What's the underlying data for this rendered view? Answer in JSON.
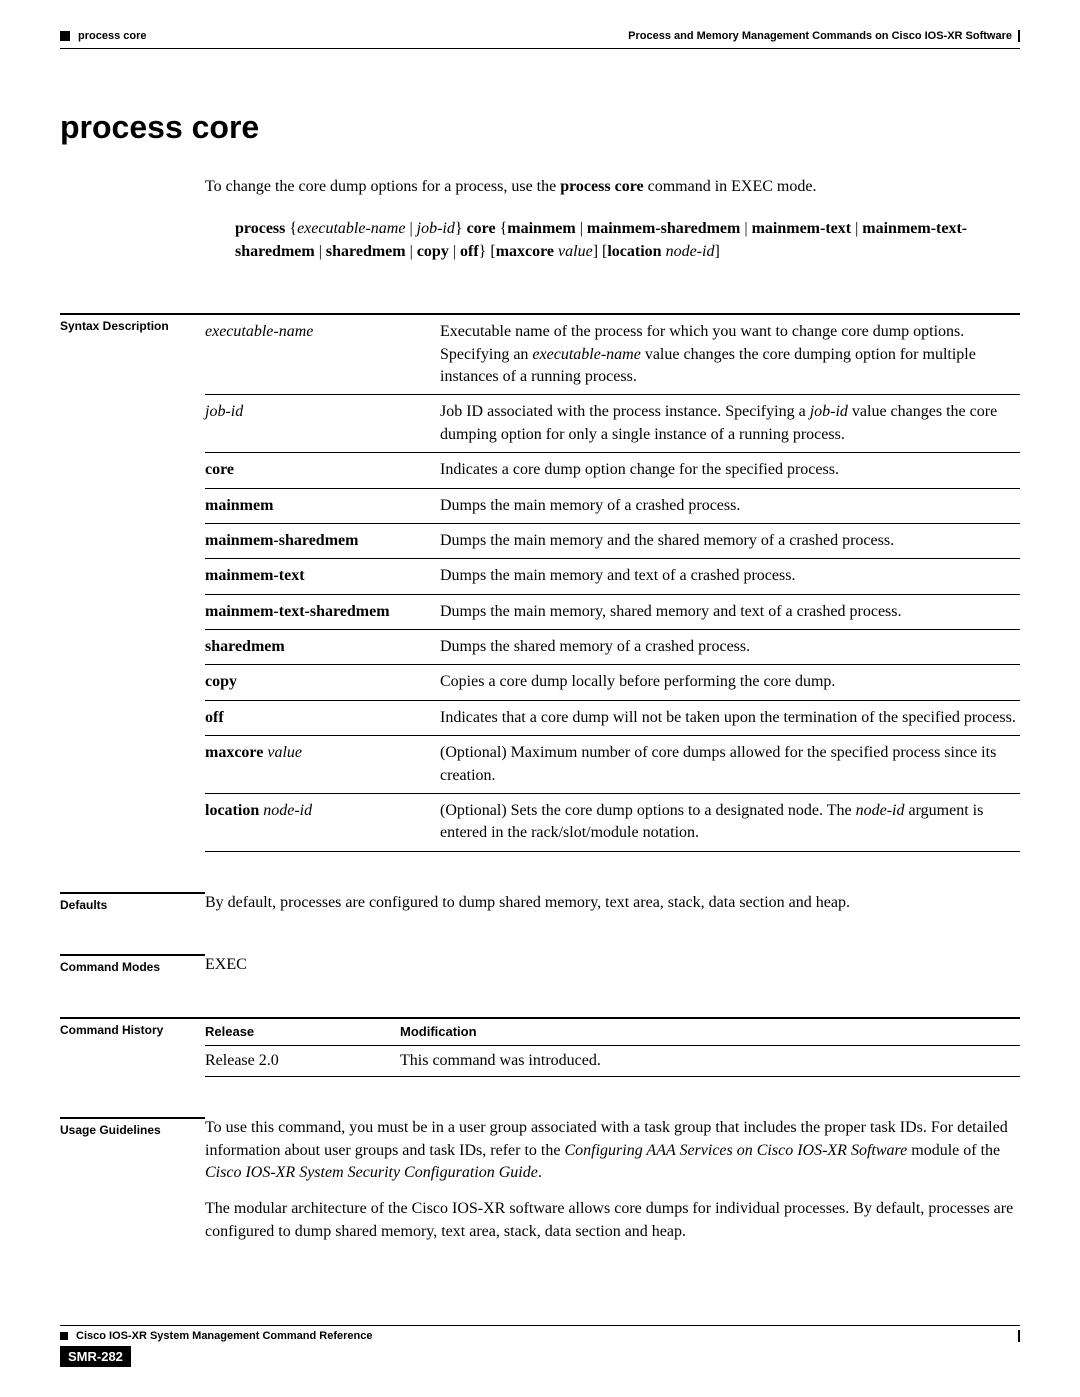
{
  "header": {
    "left_label": "process core",
    "right_label": "Process and Memory Management Commands on Cisco IOS-XR Software"
  },
  "title": "process core",
  "intro": {
    "pre": "To change the core dump options for a process, use the ",
    "cmd": "process core",
    "post": " command in EXEC mode."
  },
  "syntax": {
    "parts": [
      {
        "t": "process",
        "b": true
      },
      {
        "t": " {",
        "b": false
      },
      {
        "t": "executable-name",
        "i": true
      },
      {
        "t": " | ",
        "b": false
      },
      {
        "t": "job-id",
        "i": true
      },
      {
        "t": "} ",
        "b": false
      },
      {
        "t": "core",
        "b": true
      },
      {
        "t": " {",
        "b": false
      },
      {
        "t": "mainmem",
        "b": true
      },
      {
        "t": " | ",
        "b": false
      },
      {
        "t": "mainmem-sharedmem",
        "b": true
      },
      {
        "t": " | ",
        "b": false
      },
      {
        "t": "mainmem-text",
        "b": true
      },
      {
        "t": " | ",
        "b": false
      },
      {
        "t": "mainmem-text-sharedmem",
        "b": true
      },
      {
        "t": " | ",
        "b": false
      },
      {
        "t": "sharedmem",
        "b": true
      },
      {
        "t": " | ",
        "b": false
      },
      {
        "t": "copy",
        "b": true
      },
      {
        "t": " | ",
        "b": false
      },
      {
        "t": "off",
        "b": true
      },
      {
        "t": "} [",
        "b": false
      },
      {
        "t": "maxcore",
        "b": true
      },
      {
        "t": " ",
        "b": false
      },
      {
        "t": "value",
        "i": true
      },
      {
        "t": "] [",
        "b": false
      },
      {
        "t": "location",
        "b": true
      },
      {
        "t": " ",
        "b": false
      },
      {
        "t": "node-id",
        "i": true
      },
      {
        "t": "]",
        "b": false
      }
    ]
  },
  "sections": {
    "syntax_desc_label": "Syntax Description",
    "defaults_label": "Defaults",
    "modes_label": "Command Modes",
    "history_label": "Command History",
    "usage_label": "Usage Guidelines"
  },
  "syntax_table": [
    {
      "key": [
        {
          "t": "executable-name",
          "i": true
        }
      ],
      "desc": [
        {
          "t": "Executable name of the process for which you want to change core dump options. Specifying an "
        },
        {
          "t": "executable-name",
          "i": true
        },
        {
          "t": " value changes the core dumping option for multiple instances of a running process."
        }
      ]
    },
    {
      "key": [
        {
          "t": "job-id",
          "i": true
        }
      ],
      "desc": [
        {
          "t": "Job ID associated with the process instance. Specifying a "
        },
        {
          "t": "job-id",
          "i": true
        },
        {
          "t": " value changes the core dumping option for only a single instance of a running process."
        }
      ]
    },
    {
      "key": [
        {
          "t": "core",
          "b": true
        }
      ],
      "desc": [
        {
          "t": "Indicates a core dump option change for the specified process."
        }
      ]
    },
    {
      "key": [
        {
          "t": "mainmem",
          "b": true
        }
      ],
      "desc": [
        {
          "t": "Dumps the main memory of a crashed process."
        }
      ]
    },
    {
      "key": [
        {
          "t": "mainmem-sharedmem",
          "b": true
        }
      ],
      "desc": [
        {
          "t": "Dumps the main memory and the shared memory of a crashed process."
        }
      ]
    },
    {
      "key": [
        {
          "t": "mainmem-text",
          "b": true
        }
      ],
      "desc": [
        {
          "t": "Dumps the main memory and text of a crashed process."
        }
      ]
    },
    {
      "key": [
        {
          "t": "mainmem-text-sharedmem",
          "b": true
        }
      ],
      "desc": [
        {
          "t": "Dumps the main memory, shared memory and text of a crashed process."
        }
      ]
    },
    {
      "key": [
        {
          "t": "sharedmem",
          "b": true
        }
      ],
      "desc": [
        {
          "t": "Dumps the shared memory of a crashed process."
        }
      ]
    },
    {
      "key": [
        {
          "t": "copy",
          "b": true
        }
      ],
      "desc": [
        {
          "t": "Copies a core dump locally before performing the core dump."
        }
      ]
    },
    {
      "key": [
        {
          "t": "off",
          "b": true
        }
      ],
      "desc": [
        {
          "t": "Indicates that a core dump will not be taken upon the termination of the specified process."
        }
      ]
    },
    {
      "key": [
        {
          "t": "maxcore",
          "b": true
        },
        {
          "t": " "
        },
        {
          "t": "value",
          "i": true
        }
      ],
      "desc": [
        {
          "t": "(Optional) Maximum number of core dumps allowed for the specified process since its creation."
        }
      ]
    },
    {
      "key": [
        {
          "t": "location",
          "b": true
        },
        {
          "t": " "
        },
        {
          "t": "node-id",
          "i": true
        }
      ],
      "desc": [
        {
          "t": "(Optional) Sets the core dump options to a designated node. The "
        },
        {
          "t": "node-id",
          "i": true
        },
        {
          "t": " argument is entered in the rack/slot/module notation."
        }
      ]
    }
  ],
  "defaults_text": "By default, processes are configured to dump shared memory, text area, stack, data section and heap.",
  "modes_text": "EXEC",
  "history": {
    "col1": "Release",
    "col2": "Modification",
    "rows": [
      {
        "release": "Release 2.0",
        "modification": "This command was introduced."
      }
    ]
  },
  "usage": {
    "p1": [
      {
        "t": "To use this command, you must be in a user group associated with a task group that includes the proper task IDs. For detailed information about user groups and task IDs, refer to the "
      },
      {
        "t": "Configuring AAA Services on Cisco IOS-XR Software",
        "i": true
      },
      {
        "t": " module of the "
      },
      {
        "t": "Cisco IOS-XR System Security Configuration Guide",
        "i": true
      },
      {
        "t": "."
      }
    ],
    "p2": [
      {
        "t": "The modular architecture of the Cisco IOS-XR software allows core dumps for individual processes. By default, processes are configured to dump shared memory, text area, stack, data section and heap."
      }
    ]
  },
  "footer": {
    "doc_title": "Cisco IOS-XR System Management Command Reference",
    "page": "SMR-282"
  }
}
